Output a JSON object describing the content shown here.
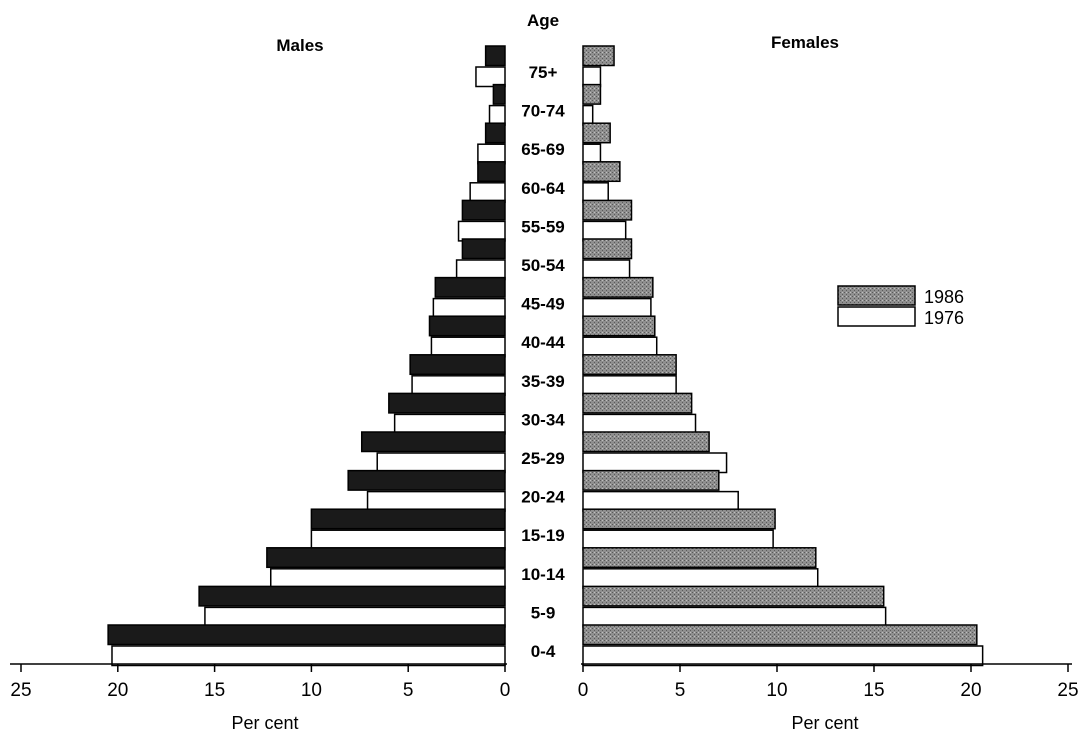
{
  "chart_data": {
    "type": "bar",
    "orientation": "horizontal",
    "layout": "population-pyramid",
    "age_axis_title": "Age",
    "left_panel": {
      "title": "Males",
      "xlabel": "Per cent",
      "xlim": [
        25,
        0
      ],
      "ticks": [
        25,
        20,
        15,
        10,
        5,
        0
      ]
    },
    "right_panel": {
      "title": "Females",
      "xlabel": "Per cent",
      "xlim": [
        0,
        25
      ],
      "ticks": [
        0,
        5,
        10,
        15,
        20,
        25
      ]
    },
    "categories": [
      "75+",
      "70-74",
      "65-69",
      "60-64",
      "55-59",
      "50-54",
      "45-49",
      "40-44",
      "35-39",
      "30-34",
      "25-29",
      "20-24",
      "15-19",
      "10-14",
      "5-9",
      "0-4"
    ],
    "legend": {
      "position": "right",
      "entries": [
        "1986",
        "1976"
      ]
    },
    "series": [
      {
        "name": "1986",
        "males": [
          1.0,
          0.6,
          1.0,
          1.4,
          2.2,
          2.2,
          3.6,
          3.9,
          4.9,
          6.0,
          7.4,
          8.1,
          10.0,
          12.3,
          15.8,
          20.5
        ],
        "females": [
          1.6,
          0.9,
          1.4,
          1.9,
          2.5,
          2.5,
          3.6,
          3.7,
          4.8,
          5.6,
          6.5,
          7.0,
          9.9,
          12.0,
          15.5,
          20.3
        ]
      },
      {
        "name": "1976",
        "males": [
          1.5,
          0.8,
          1.4,
          1.8,
          2.4,
          2.5,
          3.7,
          3.8,
          4.8,
          5.7,
          6.6,
          7.1,
          10.0,
          12.1,
          15.5,
          20.3
        ],
        "females": [
          0.9,
          0.5,
          0.9,
          1.3,
          2.2,
          2.4,
          3.5,
          3.8,
          4.8,
          5.8,
          7.4,
          8.0,
          9.8,
          12.1,
          15.6,
          20.6
        ]
      }
    ],
    "colors": {
      "males_1986": "#1a1a1a",
      "females_1986": "#8f8f8f",
      "bar_1976": "#ffffff",
      "outline": "#000000"
    }
  }
}
